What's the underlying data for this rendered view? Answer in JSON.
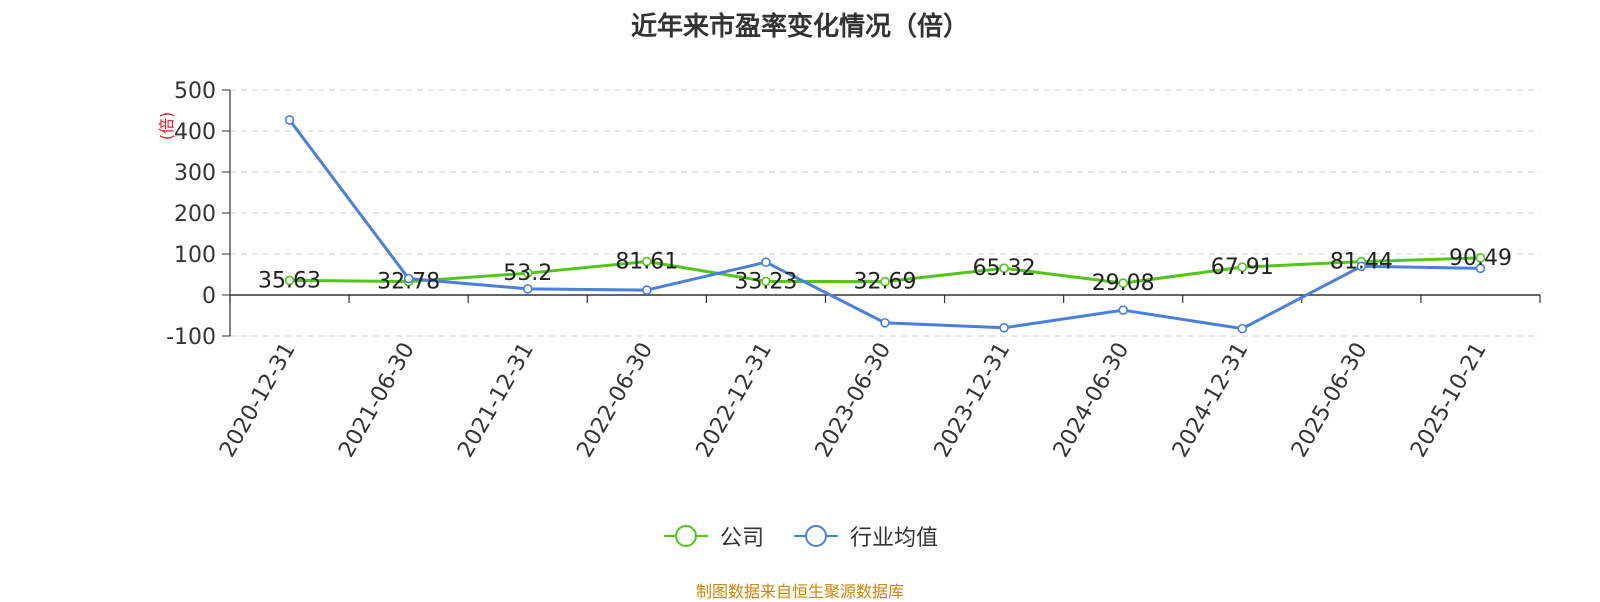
{
  "chart_data": {
    "type": "line",
    "title": "近年来市盈率变化情况（倍）",
    "ylabel": "(倍)",
    "ylim": [
      -100,
      500
    ],
    "yticks": [
      -100,
      0,
      100,
      200,
      300,
      400,
      500
    ],
    "grid": true,
    "legend_position": "bottom",
    "categories": [
      "2020-12-31",
      "2021-06-30",
      "2021-12-31",
      "2022-06-30",
      "2022-12-31",
      "2023-06-30",
      "2023-12-31",
      "2024-06-30",
      "2024-12-31",
      "2025-06-30",
      "2025-10-21"
    ],
    "series": [
      {
        "name": "公司",
        "color": "#52c41a",
        "values": [
          35.63,
          32.78,
          53.2,
          81.61,
          33.23,
          32.69,
          65.32,
          29.08,
          67.91,
          81.44,
          90.49
        ],
        "labels": [
          "35.63",
          "32.78",
          "53.2",
          "81.61",
          "33.23",
          "32.69",
          "65.32",
          "29.08",
          "67.91",
          "81.44",
          "90.49"
        ]
      },
      {
        "name": "行业均值",
        "color": "#4a7fdc",
        "values": [
          427,
          40,
          15,
          12,
          80,
          -68,
          -80,
          -37,
          -82,
          70,
          65
        ]
      }
    ]
  },
  "source": "制图数据来自恒生聚源数据库"
}
